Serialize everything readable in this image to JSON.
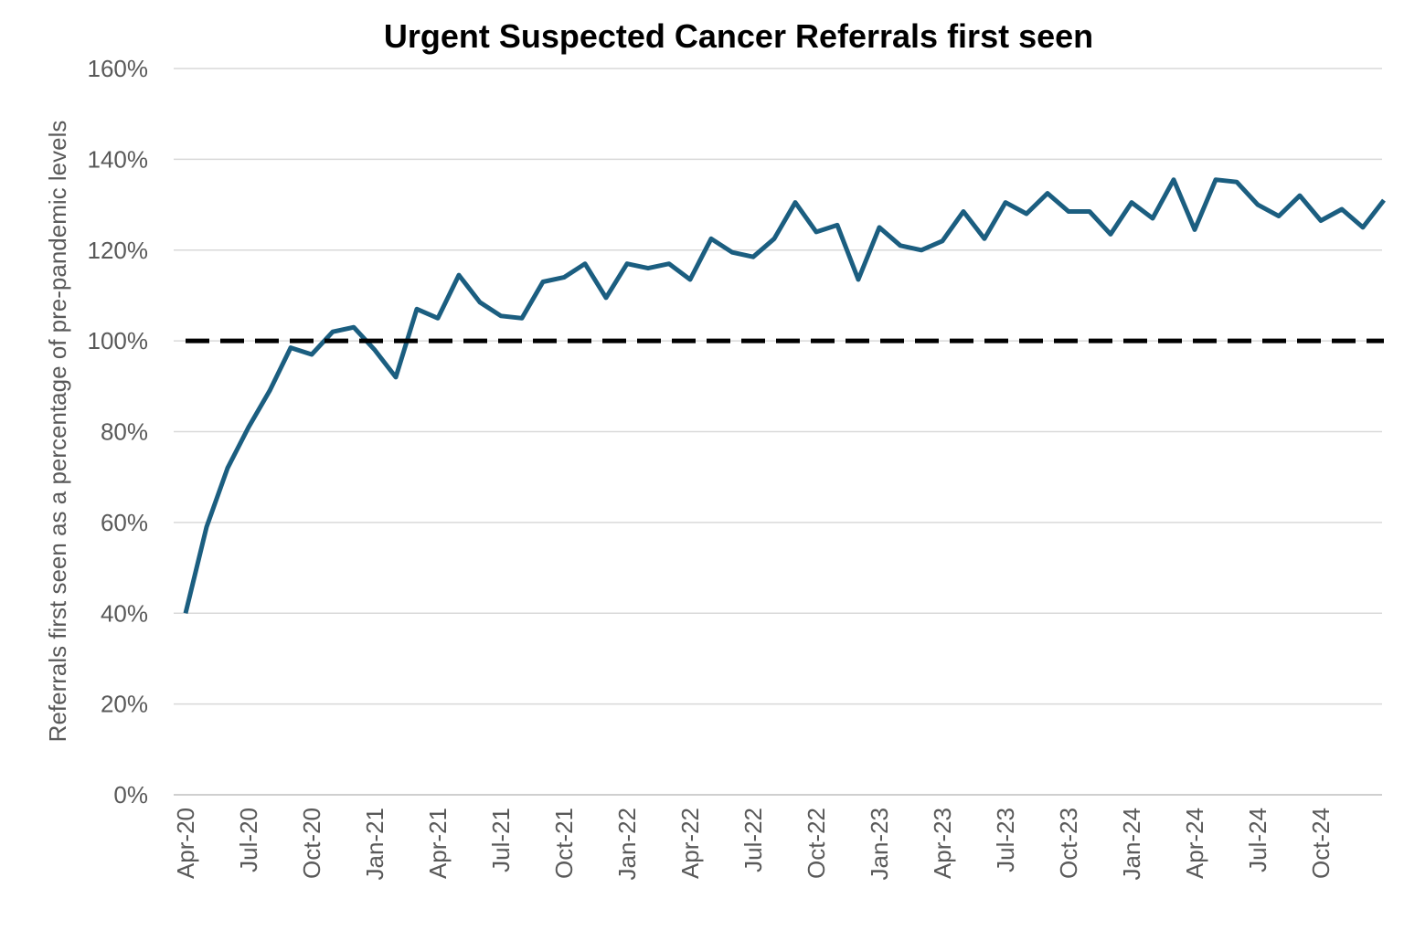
{
  "chart_data": {
    "type": "line",
    "title": "Urgent Suspected Cancer Referrals first seen",
    "xlabel": "",
    "ylabel": "Referrals first seen as a percentage of pre-pandemic levels",
    "ylim": [
      0,
      160
    ],
    "ytick_labels": [
      "0%",
      "20%",
      "40%",
      "60%",
      "80%",
      "100%",
      "120%",
      "140%",
      "160%"
    ],
    "xtick_labels": [
      "Apr-20",
      "Jul-20",
      "Oct-20",
      "Jan-21",
      "Apr-21",
      "Jul-21",
      "Oct-21",
      "Jan-22",
      "Apr-22",
      "Jul-22",
      "Oct-22",
      "Jan-23",
      "Apr-23",
      "Jul-23",
      "Oct-23",
      "Jan-24",
      "Apr-24",
      "Jul-24",
      "Oct-24"
    ],
    "grid": true,
    "legend": "none",
    "x": [
      "Apr-20",
      "May-20",
      "Jun-20",
      "Jul-20",
      "Aug-20",
      "Sep-20",
      "Oct-20",
      "Nov-20",
      "Dec-20",
      "Jan-21",
      "Feb-21",
      "Mar-21",
      "Apr-21",
      "May-21",
      "Jun-21",
      "Jul-21",
      "Aug-21",
      "Sep-21",
      "Oct-21",
      "Nov-21",
      "Dec-21",
      "Jan-22",
      "Feb-22",
      "Mar-22",
      "Apr-22",
      "May-22",
      "Jun-22",
      "Jul-22",
      "Aug-22",
      "Sep-22",
      "Oct-22",
      "Nov-22",
      "Dec-22",
      "Jan-23",
      "Feb-23",
      "Mar-23",
      "Apr-23",
      "May-23",
      "Jun-23",
      "Jul-23",
      "Aug-23",
      "Sep-23",
      "Oct-23",
      "Nov-23",
      "Dec-23",
      "Jan-24",
      "Feb-24",
      "Mar-24",
      "Apr-24",
      "May-24",
      "Jun-24",
      "Jul-24",
      "Aug-24",
      "Sep-24",
      "Oct-24",
      "Nov-24",
      "Dec-24",
      "Jan-25"
    ],
    "series": [
      {
        "color": "#1b5e80",
        "values": [
          40,
          59,
          72,
          81,
          89,
          98.5,
          97,
          102,
          103,
          98,
          92,
          107,
          105,
          114.5,
          108.5,
          105.5,
          105,
          113,
          114,
          117,
          109.5,
          117,
          116,
          117,
          113.5,
          122.5,
          119.5,
          118.5,
          122.5,
          130.5,
          124,
          125.5,
          113.5,
          125,
          121,
          120,
          122,
          128.5,
          122.5,
          130.5,
          128,
          132.5,
          128.5,
          128.5,
          123.5,
          130.5,
          127,
          135.5,
          124.5,
          135.5,
          135,
          130,
          127.5,
          132,
          126.5,
          129,
          125,
          131
        ]
      },
      {
        "style": "dashed",
        "color": "#000000",
        "values": [
          100,
          100,
          100,
          100,
          100,
          100,
          100,
          100,
          100,
          100,
          100,
          100,
          100,
          100,
          100,
          100,
          100,
          100,
          100,
          100,
          100,
          100,
          100,
          100,
          100,
          100,
          100,
          100,
          100,
          100,
          100,
          100,
          100,
          100,
          100,
          100,
          100,
          100,
          100,
          100,
          100,
          100,
          100,
          100,
          100,
          100,
          100,
          100,
          100,
          100,
          100,
          100,
          100,
          100,
          100,
          100,
          100,
          100
        ]
      }
    ]
  }
}
